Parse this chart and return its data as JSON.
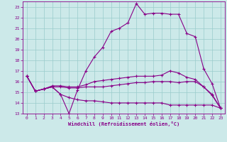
{
  "xlabel": "Windchill (Refroidissement éolien,°C)",
  "xlim": [
    -0.5,
    23.5
  ],
  "ylim": [
    13,
    23.5
  ],
  "xticks": [
    0,
    1,
    2,
    3,
    4,
    5,
    6,
    7,
    8,
    9,
    10,
    11,
    12,
    13,
    14,
    15,
    16,
    17,
    18,
    19,
    20,
    21,
    22,
    23
  ],
  "yticks": [
    13,
    14,
    15,
    16,
    17,
    18,
    19,
    20,
    21,
    22,
    23
  ],
  "bg_color": "#cce9e9",
  "line_color": "#880088",
  "grid_color": "#99cccc",
  "lines": [
    {
      "x": [
        0,
        1,
        2,
        3,
        4,
        5,
        6,
        7,
        8,
        9,
        10,
        11,
        12,
        13,
        14,
        15,
        16,
        17,
        18,
        19,
        20,
        21,
        22,
        23
      ],
      "y": [
        16.5,
        15.1,
        15.3,
        15.5,
        14.8,
        13.0,
        15.2,
        17.0,
        18.3,
        19.2,
        20.7,
        21.0,
        21.5,
        23.3,
        22.3,
        22.4,
        22.4,
        22.3,
        22.3,
        20.5,
        20.2,
        17.2,
        15.8,
        13.5
      ]
    },
    {
      "x": [
        0,
        1,
        2,
        3,
        4,
        5,
        6,
        7,
        8,
        9,
        10,
        11,
        12,
        13,
        14,
        15,
        16,
        17,
        18,
        19,
        20,
        21,
        22,
        23
      ],
      "y": [
        16.5,
        15.1,
        15.3,
        15.6,
        15.6,
        15.5,
        15.5,
        15.7,
        16.0,
        16.1,
        16.2,
        16.3,
        16.4,
        16.5,
        16.5,
        16.5,
        16.6,
        17.0,
        16.8,
        16.4,
        16.2,
        15.5,
        14.7,
        13.5
      ]
    },
    {
      "x": [
        0,
        1,
        2,
        3,
        4,
        5,
        6,
        7,
        8,
        9,
        10,
        11,
        12,
        13,
        14,
        15,
        16,
        17,
        18,
        19,
        20,
        21,
        22,
        23
      ],
      "y": [
        16.5,
        15.1,
        15.3,
        15.5,
        14.8,
        14.5,
        14.3,
        14.2,
        14.2,
        14.1,
        14.0,
        14.0,
        14.0,
        14.0,
        14.0,
        14.0,
        14.0,
        13.8,
        13.8,
        13.8,
        13.8,
        13.8,
        13.8,
        13.5
      ]
    },
    {
      "x": [
        0,
        1,
        2,
        3,
        4,
        5,
        6,
        7,
        8,
        9,
        10,
        11,
        12,
        13,
        14,
        15,
        16,
        17,
        18,
        19,
        20,
        21,
        22,
        23
      ],
      "y": [
        16.5,
        15.1,
        15.3,
        15.5,
        15.5,
        15.4,
        15.4,
        15.5,
        15.5,
        15.5,
        15.6,
        15.7,
        15.8,
        15.9,
        15.9,
        16.0,
        16.0,
        16.0,
        15.9,
        16.0,
        16.0,
        15.5,
        14.8,
        13.5
      ]
    }
  ]
}
